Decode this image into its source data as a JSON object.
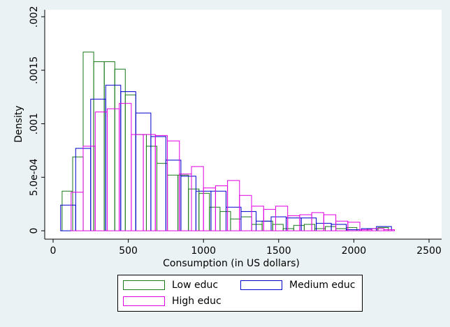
{
  "chart_data": {
    "type": "histogram",
    "xlabel": "Consumption (in US dollars)",
    "ylabel": "Density",
    "xlim": [
      0,
      2500
    ],
    "ylim": [
      0,
      0.002
    ],
    "x_ticks": [
      "0",
      "500",
      "1000",
      "1500",
      "2000",
      "2500"
    ],
    "y_ticks": [
      "0",
      "5.0e-04",
      ".001",
      ".0015",
      ".002"
    ],
    "grid": false,
    "legend_position": "bottom",
    "series": [
      {
        "name": "Low educ",
        "color": "#1a7a1a",
        "bins": [
          {
            "x0": 60,
            "x1": 130,
            "y": 0.00037
          },
          {
            "x0": 130,
            "x1": 200,
            "y": 0.00069
          },
          {
            "x0": 200,
            "x1": 270,
            "y": 0.00167
          },
          {
            "x0": 270,
            "x1": 340,
            "y": 0.00158
          },
          {
            "x0": 340,
            "x1": 410,
            "y": 0.00158
          },
          {
            "x0": 410,
            "x1": 480,
            "y": 0.00151
          },
          {
            "x0": 480,
            "x1": 550,
            "y": 0.00127
          },
          {
            "x0": 550,
            "x1": 620,
            "y": 0.0009
          },
          {
            "x0": 620,
            "x1": 690,
            "y": 0.00079
          },
          {
            "x0": 690,
            "x1": 760,
            "y": 0.00063
          },
          {
            "x0": 760,
            "x1": 830,
            "y": 0.00052
          },
          {
            "x0": 830,
            "x1": 900,
            "y": 0.00052
          },
          {
            "x0": 900,
            "x1": 970,
            "y": 0.00039
          },
          {
            "x0": 970,
            "x1": 1040,
            "y": 0.00035
          },
          {
            "x0": 1040,
            "x1": 1110,
            "y": 0.00022
          },
          {
            "x0": 1110,
            "x1": 1180,
            "y": 0.00018
          },
          {
            "x0": 1180,
            "x1": 1250,
            "y": 0.00011
          },
          {
            "x0": 1250,
            "x1": 1320,
            "y": 0.00013
          },
          {
            "x0": 1320,
            "x1": 1390,
            "y": 6e-05
          },
          {
            "x0": 1390,
            "x1": 1460,
            "y": 9e-05
          },
          {
            "x0": 1460,
            "x1": 1530,
            "y": 6e-05
          },
          {
            "x0": 1530,
            "x1": 1600,
            "y": 2e-05
          },
          {
            "x0": 1600,
            "x1": 1670,
            "y": 5e-05
          },
          {
            "x0": 1670,
            "x1": 1740,
            "y": 6e-05
          },
          {
            "x0": 1740,
            "x1": 1810,
            "y": 2e-05
          },
          {
            "x0": 1810,
            "x1": 1880,
            "y": 4e-05
          },
          {
            "x0": 1880,
            "x1": 1950,
            "y": 2e-05
          },
          {
            "x0": 1950,
            "x1": 2020,
            "y": 3e-05
          },
          {
            "x0": 2020,
            "x1": 2090,
            "y": 1e-05
          },
          {
            "x0": 2090,
            "x1": 2160,
            "y": 2e-05
          },
          {
            "x0": 2160,
            "x1": 2230,
            "y": 3e-05
          }
        ]
      },
      {
        "name": "Medium educ",
        "color": "#0000cc",
        "bins": [
          {
            "x0": 50,
            "x1": 150,
            "y": 0.00024
          },
          {
            "x0": 150,
            "x1": 250,
            "y": 0.00077
          },
          {
            "x0": 250,
            "x1": 350,
            "y": 0.00123
          },
          {
            "x0": 350,
            "x1": 450,
            "y": 0.00136
          },
          {
            "x0": 450,
            "x1": 550,
            "y": 0.0013
          },
          {
            "x0": 550,
            "x1": 650,
            "y": 0.0011
          },
          {
            "x0": 650,
            "x1": 750,
            "y": 0.00088
          },
          {
            "x0": 750,
            "x1": 850,
            "y": 0.00066
          },
          {
            "x0": 850,
            "x1": 950,
            "y": 0.00051
          },
          {
            "x0": 950,
            "x1": 1050,
            "y": 0.00037
          },
          {
            "x0": 1050,
            "x1": 1150,
            "y": 0.00037
          },
          {
            "x0": 1150,
            "x1": 1250,
            "y": 0.00022
          },
          {
            "x0": 1250,
            "x1": 1350,
            "y": 0.00018
          },
          {
            "x0": 1350,
            "x1": 1450,
            "y": 9e-05
          },
          {
            "x0": 1450,
            "x1": 1550,
            "y": 0.00013
          },
          {
            "x0": 1550,
            "x1": 1650,
            "y": 0.00012
          },
          {
            "x0": 1650,
            "x1": 1750,
            "y": 0.00012
          },
          {
            "x0": 1750,
            "x1": 1850,
            "y": 7e-05
          },
          {
            "x0": 1850,
            "x1": 1950,
            "y": 6e-05
          },
          {
            "x0": 1950,
            "x1": 2050,
            "y": 1e-05
          },
          {
            "x0": 2050,
            "x1": 2150,
            "y": 2e-05
          },
          {
            "x0": 2150,
            "x1": 2250,
            "y": 4e-05
          }
        ]
      },
      {
        "name": "High educ",
        "color": "#e000e0",
        "bins": [
          {
            "x0": 120,
            "x1": 200,
            "y": 0.00036
          },
          {
            "x0": 200,
            "x1": 280,
            "y": 0.00079
          },
          {
            "x0": 280,
            "x1": 360,
            "y": 0.00111
          },
          {
            "x0": 360,
            "x1": 440,
            "y": 0.00114
          },
          {
            "x0": 440,
            "x1": 520,
            "y": 0.00119
          },
          {
            "x0": 520,
            "x1": 600,
            "y": 0.0009
          },
          {
            "x0": 600,
            "x1": 680,
            "y": 0.0009
          },
          {
            "x0": 680,
            "x1": 760,
            "y": 0.00089
          },
          {
            "x0": 760,
            "x1": 840,
            "y": 0.00084
          },
          {
            "x0": 840,
            "x1": 920,
            "y": 0.00053
          },
          {
            "x0": 920,
            "x1": 1000,
            "y": 0.0006
          },
          {
            "x0": 1000,
            "x1": 1080,
            "y": 0.0004
          },
          {
            "x0": 1080,
            "x1": 1160,
            "y": 0.00042
          },
          {
            "x0": 1160,
            "x1": 1240,
            "y": 0.00047
          },
          {
            "x0": 1240,
            "x1": 1320,
            "y": 0.00033
          },
          {
            "x0": 1320,
            "x1": 1400,
            "y": 0.00023
          },
          {
            "x0": 1400,
            "x1": 1480,
            "y": 0.0002
          },
          {
            "x0": 1480,
            "x1": 1560,
            "y": 0.00023
          },
          {
            "x0": 1560,
            "x1": 1640,
            "y": 0.00014
          },
          {
            "x0": 1640,
            "x1": 1720,
            "y": 0.00015
          },
          {
            "x0": 1720,
            "x1": 1800,
            "y": 0.00017
          },
          {
            "x0": 1800,
            "x1": 1880,
            "y": 0.00015
          },
          {
            "x0": 1880,
            "x1": 1960,
            "y": 9e-05
          },
          {
            "x0": 1960,
            "x1": 2040,
            "y": 8e-05
          },
          {
            "x0": 2040,
            "x1": 2120,
            "y": 1e-05
          },
          {
            "x0": 2120,
            "x1": 2200,
            "y": 2e-05
          },
          {
            "x0": 2200,
            "x1": 2270,
            "y": 1e-05
          }
        ]
      }
    ]
  }
}
